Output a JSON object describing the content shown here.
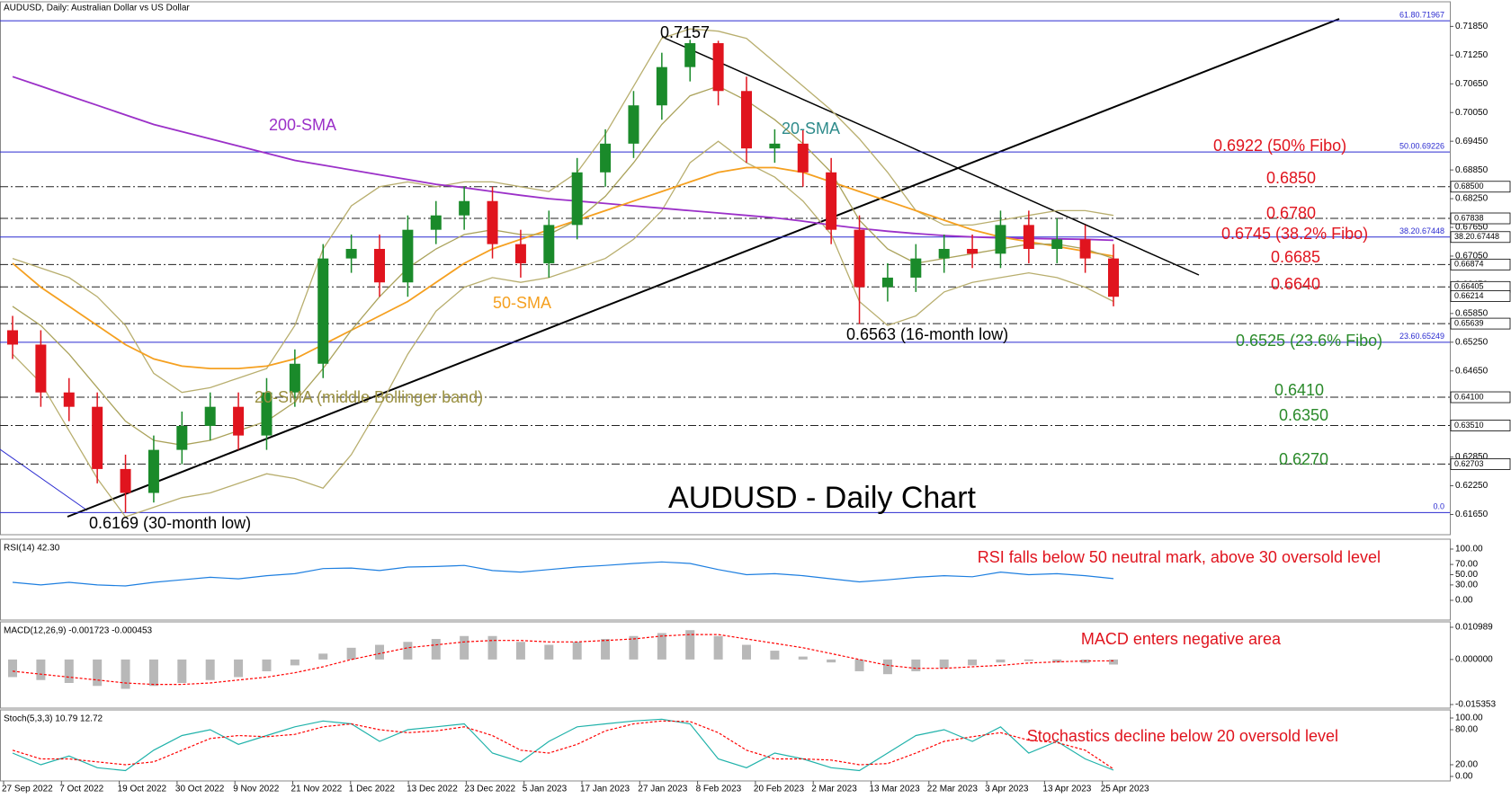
{
  "header": "AUDUSD, Daily:  Australian Dollar vs US Dollar",
  "chart_data": [
    {
      "type": "candlestick",
      "title": "AUDUSD -  Daily Chart",
      "colors": {
        "up": "#1a8a2a",
        "down": "#e0141e"
      },
      "open": [
        0.655,
        0.652,
        0.642,
        0.639,
        0.626,
        0.621,
        0.63,
        0.635,
        0.639,
        0.633,
        0.642,
        0.648,
        0.67,
        0.672,
        0.665,
        0.676,
        0.679,
        0.682,
        0.673,
        0.669,
        0.677,
        0.688,
        0.694,
        0.702,
        0.71,
        0.715,
        0.705,
        0.693,
        0.694,
        0.688,
        0.676,
        0.664,
        0.666,
        0.67,
        0.672,
        0.671,
        0.677,
        0.672,
        0.674,
        0.67
      ],
      "high": [
        0.658,
        0.655,
        0.645,
        0.642,
        0.629,
        0.633,
        0.638,
        0.642,
        0.642,
        0.645,
        0.651,
        0.673,
        0.675,
        0.675,
        0.679,
        0.682,
        0.685,
        0.685,
        0.676,
        0.68,
        0.691,
        0.697,
        0.705,
        0.713,
        0.7157,
        0.7155,
        0.708,
        0.697,
        0.697,
        0.691,
        0.679,
        0.669,
        0.673,
        0.675,
        0.675,
        0.68,
        0.68,
        0.6784,
        0.677,
        0.673
      ],
      "low": [
        0.649,
        0.639,
        0.636,
        0.623,
        0.6169,
        0.619,
        0.627,
        0.632,
        0.63,
        0.63,
        0.639,
        0.645,
        0.667,
        0.662,
        0.662,
        0.673,
        0.676,
        0.67,
        0.666,
        0.666,
        0.674,
        0.685,
        0.691,
        0.699,
        0.707,
        0.702,
        0.69,
        0.69,
        0.685,
        0.673,
        0.6563,
        0.661,
        0.663,
        0.667,
        0.668,
        0.668,
        0.669,
        0.669,
        0.667,
        0.66
      ],
      "close": [
        0.652,
        0.642,
        0.639,
        0.626,
        0.621,
        0.63,
        0.635,
        0.639,
        0.633,
        0.642,
        0.648,
        0.67,
        0.672,
        0.665,
        0.676,
        0.679,
        0.682,
        0.673,
        0.669,
        0.677,
        0.688,
        0.694,
        0.702,
        0.71,
        0.715,
        0.705,
        0.693,
        0.694,
        0.688,
        0.676,
        0.664,
        0.666,
        0.67,
        0.672,
        0.671,
        0.677,
        0.672,
        0.674,
        0.67,
        0.662
      ],
      "series": [
        {
          "name": "200-SMA",
          "color": "#9b30c8",
          "values": [
            0.708,
            0.706,
            0.704,
            0.702,
            0.7,
            0.698,
            0.6965,
            0.695,
            0.6935,
            0.692,
            0.6905,
            0.6895,
            0.6885,
            0.6875,
            0.6865,
            0.6855,
            0.6848,
            0.684,
            0.6832,
            0.6825,
            0.682,
            0.6815,
            0.681,
            0.6805,
            0.68,
            0.6795,
            0.679,
            0.6785,
            0.6778,
            0.677,
            0.6763,
            0.6757,
            0.6752,
            0.6748,
            0.6745,
            0.6743,
            0.6742,
            0.6741,
            0.674,
            0.6738
          ]
        },
        {
          "name": "50-SMA",
          "color": "#f5a020",
          "values": [
            0.669,
            0.664,
            0.66,
            0.656,
            0.652,
            0.649,
            0.6475,
            0.647,
            0.647,
            0.6475,
            0.649,
            0.652,
            0.655,
            0.658,
            0.661,
            0.665,
            0.669,
            0.672,
            0.674,
            0.676,
            0.678,
            0.68,
            0.682,
            0.684,
            0.686,
            0.688,
            0.689,
            0.689,
            0.688,
            0.686,
            0.684,
            0.682,
            0.68,
            0.678,
            0.676,
            0.6745,
            0.6735,
            0.6725,
            0.6715,
            0.6705
          ]
        },
        {
          "name": "20-SMA (middle Bollinger band)",
          "color": "#aaa25a",
          "values": [
            0.66,
            0.656,
            0.65,
            0.643,
            0.636,
            0.632,
            0.631,
            0.632,
            0.634,
            0.636,
            0.64,
            0.647,
            0.655,
            0.662,
            0.668,
            0.672,
            0.675,
            0.676,
            0.675,
            0.675,
            0.678,
            0.683,
            0.69,
            0.698,
            0.704,
            0.706,
            0.703,
            0.699,
            0.694,
            0.688,
            0.678,
            0.672,
            0.669,
            0.67,
            0.671,
            0.672,
            0.673,
            0.673,
            0.672,
            0.67
          ]
        }
      ],
      "bands": {
        "color": "#b8ae6e",
        "upper": [
          0.67,
          0.668,
          0.666,
          0.662,
          0.656,
          0.646,
          0.642,
          0.643,
          0.645,
          0.647,
          0.656,
          0.672,
          0.681,
          0.685,
          0.686,
          0.685,
          0.686,
          0.686,
          0.685,
          0.684,
          0.688,
          0.696,
          0.706,
          0.716,
          0.718,
          0.7175,
          0.716,
          0.711,
          0.706,
          0.701,
          0.695,
          0.688,
          0.68,
          0.677,
          0.677,
          0.678,
          0.679,
          0.68,
          0.68,
          0.679
        ],
        "lower": [
          0.65,
          0.644,
          0.634,
          0.624,
          0.616,
          0.618,
          0.62,
          0.621,
          0.623,
          0.625,
          0.624,
          0.622,
          0.629,
          0.639,
          0.65,
          0.659,
          0.664,
          0.666,
          0.665,
          0.666,
          0.668,
          0.67,
          0.674,
          0.68,
          0.69,
          0.6945,
          0.69,
          0.687,
          0.682,
          0.675,
          0.661,
          0.656,
          0.658,
          0.663,
          0.665,
          0.666,
          0.667,
          0.666,
          0.664,
          0.661
        ]
      },
      "ylim": [
        0.6149,
        0.7228
      ],
      "yticks": [
        {
          "value": 0.7185,
          "label": "0.71850"
        },
        {
          "value": 0.7125,
          "label": "0.71250"
        },
        {
          "value": 0.7065,
          "label": "0.70650"
        },
        {
          "value": 0.7005,
          "label": "0.70050"
        },
        {
          "value": 0.6945,
          "label": "0.69450"
        },
        {
          "value": 0.6885,
          "label": "0.68850"
        },
        {
          "value": 0.6825,
          "label": "0.68250"
        },
        {
          "value": 0.6765,
          "label": "0.67650"
        },
        {
          "value": 0.6705,
          "label": "0.67050"
        },
        {
          "value": 0.6645,
          "label": "0.66450"
        },
        {
          "value": 0.6585,
          "label": "0.65850"
        },
        {
          "value": 0.6525,
          "label": "0.65250"
        },
        {
          "value": 0.6465,
          "label": "0.64650"
        },
        {
          "value": 0.6405,
          "label": "0.64050"
        },
        {
          "value": 0.6345,
          "label": "0.63450"
        },
        {
          "value": 0.6285,
          "label": "0.62850"
        },
        {
          "value": 0.6225,
          "label": "0.62250"
        },
        {
          "value": 0.6165,
          "label": "0.61650"
        }
      ],
      "fibo_levels": [
        {
          "value": 0.71967,
          "label": "61.80.71967"
        },
        {
          "value": 0.69226,
          "label": "50.00.69226"
        },
        {
          "value": 0.67448,
          "label": "38.20.67448"
        },
        {
          "value": 0.65249,
          "label": "23.60.65249"
        },
        {
          "value": 0.6169,
          "label": "0.0"
        }
      ],
      "fibo_color": "#2a2ad0",
      "levels": [
        0.685,
        0.67838,
        0.66874,
        0.66405,
        0.65639,
        0.641,
        0.6351,
        0.62703
      ],
      "price_labels": [
        {
          "value": 0.685,
          "label": "0.68500"
        },
        {
          "value": 0.67838,
          "label": "0.67838"
        },
        {
          "value": 0.67448,
          "label": "38.20.67448"
        },
        {
          "value": 0.66874,
          "label": "0.66874"
        },
        {
          "value": 0.66405,
          "label": "0.66405"
        },
        {
          "value": 0.66214,
          "label": "0.66214"
        },
        {
          "value": 0.65639,
          "label": "0.65639"
        },
        {
          "value": 0.641,
          "label": "0.64100"
        },
        {
          "value": 0.6351,
          "label": "0.63510"
        },
        {
          "value": 0.62703,
          "label": "0.62703"
        }
      ],
      "annotations": [
        {
          "text": "0.7157",
          "color": "#000000"
        },
        {
          "text": "200-SMA",
          "color": "#9b30c8"
        },
        {
          "text": "20-SMA",
          "color": "#2e8b8b"
        },
        {
          "text": "50-SMA",
          "color": "#f5a020"
        },
        {
          "text": "20-SMA (middle Bollinger band)",
          "color": "#9a9040"
        },
        {
          "text": "0.6563 (16-month low)",
          "color": "#000000"
        },
        {
          "text": "0.6169 (30-month low)",
          "color": "#000000"
        },
        {
          "text": "0.6922 (50% Fibo)",
          "color": "#e0141e"
        },
        {
          "text": "0.6850",
          "color": "#e0141e"
        },
        {
          "text": "0.6780",
          "color": "#e0141e"
        },
        {
          "text": "0.6745 (38.2% Fibo)",
          "color": "#e0141e"
        },
        {
          "text": "0.6685",
          "color": "#e0141e"
        },
        {
          "text": "0.6640",
          "color": "#e0141e"
        },
        {
          "text": "0.6525 (23.6% Fibo)",
          "color": "#2a8a2a"
        },
        {
          "text": "0.6410",
          "color": "#2a8a2a"
        },
        {
          "text": "0.6350",
          "color": "#2a8a2a"
        },
        {
          "text": "0.6270",
          "color": "#2a8a2a"
        }
      ],
      "x_labels": [
        "27 Sep 2022",
        "7 Oct 2022",
        "19 Oct 2022",
        "30 Oct 2022",
        "9 Nov 2022",
        "21 Nov 2022",
        "1 Dec 2022",
        "13 Dec 2022",
        "23 Dec 2022",
        "5 Jan 2023",
        "17 Jan 2023",
        "27 Jan 2023",
        "8 Feb 2023",
        "20 Feb 2023",
        "2 Mar 2023",
        "13 Mar 2023",
        "22 Mar 2023",
        "3 Apr 2023",
        "13 Apr 2023",
        "25 Apr 2023"
      ]
    },
    {
      "type": "line",
      "title": "RSI(14) 42.30",
      "annotation": "RSI falls below 50 neutral mark, above 30 oversold level",
      "ylim": [
        0,
        100
      ],
      "yticks": [
        {
          "value": 100,
          "label": "100.00"
        },
        {
          "value": 70,
          "label": "70.00"
        },
        {
          "value": 50,
          "label": "50.00"
        },
        {
          "value": 30,
          "label": "30.00"
        },
        {
          "value": 0,
          "label": "0.00"
        }
      ],
      "series": [
        {
          "color": "#1e7fe0",
          "values": [
            35,
            30,
            35,
            30,
            28,
            35,
            40,
            45,
            42,
            48,
            52,
            62,
            63,
            58,
            65,
            66,
            68,
            58,
            55,
            60,
            65,
            68,
            72,
            75,
            72,
            60,
            50,
            52,
            48,
            42,
            36,
            40,
            45,
            48,
            46,
            55,
            50,
            52,
            48,
            42.3
          ]
        }
      ]
    },
    {
      "type": "macd",
      "title": "MACD(12,26,9) -0.001723 -0.000453",
      "annotation": "MACD enters negative area",
      "ylim": [
        -0.015353,
        0.010989
      ],
      "yticks": [
        0.010989,
        {
          "value": 0,
          "label": "0.000000"
        },
        -0.015353
      ],
      "series": [
        {
          "color": "#b8b8b8",
          "values": [
            -0.006,
            -0.007,
            -0.008,
            -0.009,
            -0.01,
            -0.009,
            -0.008,
            -0.007,
            -0.006,
            -0.004,
            -0.002,
            0.002,
            0.004,
            0.005,
            0.006,
            0.007,
            0.008,
            0.008,
            0.006,
            0.005,
            0.006,
            0.007,
            0.008,
            0.009,
            0.01,
            0.008,
            0.005,
            0.003,
            0.001,
            -0.001,
            -0.004,
            -0.005,
            -0.004,
            -0.003,
            -0.002,
            -0.001,
            -0.0005,
            -0.001,
            -0.0012,
            -0.001723
          ]
        },
        {
          "color": "#ff0000",
          "dashed": true,
          "values": [
            -0.004,
            -0.005,
            -0.006,
            -0.007,
            -0.008,
            -0.0085,
            -0.0085,
            -0.008,
            -0.007,
            -0.006,
            -0.0045,
            -0.0025,
            0,
            0.002,
            0.004,
            0.005,
            0.006,
            0.0065,
            0.0065,
            0.006,
            0.006,
            0.0065,
            0.007,
            0.008,
            0.0085,
            0.0085,
            0.007,
            0.0055,
            0.004,
            0.002,
            0,
            -0.002,
            -0.003,
            -0.003,
            -0.0025,
            -0.002,
            -0.0012,
            -0.0008,
            -0.0005,
            -0.000453
          ]
        }
      ]
    },
    {
      "type": "line",
      "title": "Stoch(5,3,3) 10.79 12.72",
      "annotation": "Stochastics decline below 20 oversold level",
      "ylim": [
        0,
        100
      ],
      "yticks": [
        {
          "value": 100,
          "label": "100.00"
        },
        {
          "value": 80,
          "label": "80.00"
        },
        {
          "value": 20,
          "label": "20.00"
        },
        {
          "value": 0,
          "label": "0.00"
        }
      ],
      "series": [
        {
          "color": "#20b2aa",
          "values": [
            40,
            20,
            35,
            15,
            10,
            45,
            70,
            80,
            55,
            70,
            85,
            95,
            90,
            60,
            80,
            85,
            90,
            40,
            25,
            60,
            85,
            90,
            95,
            98,
            90,
            30,
            15,
            40,
            30,
            15,
            10,
            40,
            70,
            80,
            60,
            85,
            40,
            60,
            30,
            10.79
          ]
        },
        {
          "color": "#ff0000",
          "dashed": true,
          "values": [
            45,
            30,
            30,
            25,
            20,
            25,
            45,
            65,
            70,
            68,
            72,
            85,
            90,
            80,
            75,
            78,
            85,
            70,
            45,
            40,
            55,
            78,
            90,
            95,
            94,
            75,
            45,
            30,
            30,
            28,
            20,
            22,
            40,
            60,
            68,
            75,
            62,
            58,
            45,
            12.72
          ]
        }
      ]
    }
  ]
}
